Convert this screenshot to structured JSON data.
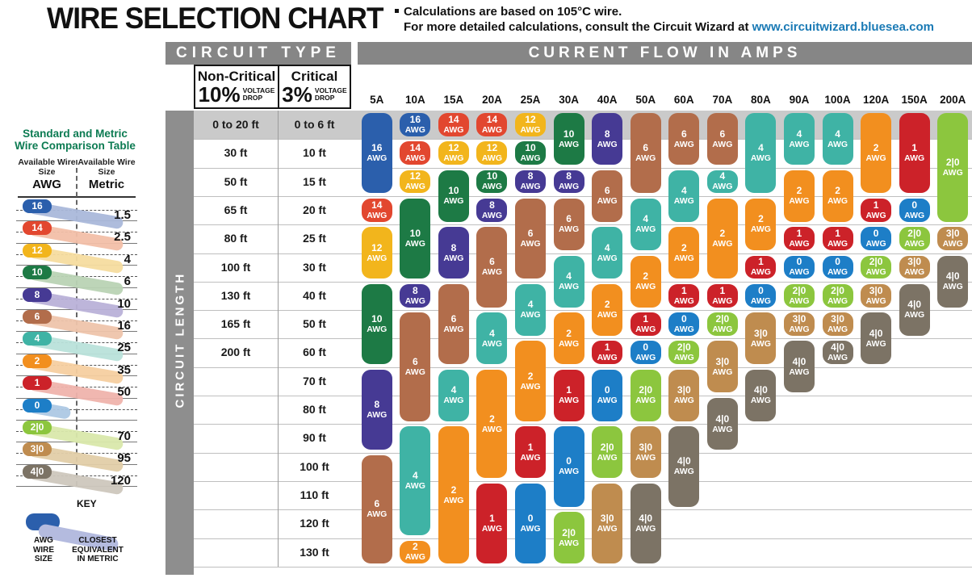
{
  "header": {
    "title": "WIRE SELECTION CHART",
    "note_line1": "Calculations are based on 105°C wire.",
    "note_line2": "For more detailed calculations, consult the Circuit Wizard at ",
    "link": "www.circuitwizard.bluesea.com"
  },
  "sidebar": {
    "title_line1": "Standard and Metric",
    "title_line2": "Wire Comparison Table",
    "col_awg_header": "Available Wire Size",
    "col_awg_sub": "AWG",
    "col_metric_header": "Available Wire Size",
    "col_metric_sub": "Metric",
    "rows": [
      {
        "awg": "16",
        "metric": "1.5"
      },
      {
        "awg": "14",
        "metric": "2.5"
      },
      {
        "awg": "12",
        "metric": "4"
      },
      {
        "awg": "10",
        "metric": "6"
      },
      {
        "awg": "8",
        "metric": "10"
      },
      {
        "awg": "6",
        "metric": "16"
      },
      {
        "awg": "4",
        "metric": "25"
      },
      {
        "awg": "2",
        "metric": "35"
      },
      {
        "awg": "1",
        "metric": "50"
      },
      {
        "awg": "0",
        "metric": ""
      },
      {
        "awg": "2|0",
        "metric": "70"
      },
      {
        "awg": "3|0",
        "metric": "95"
      },
      {
        "awg": "4|0",
        "metric": "120"
      }
    ],
    "key": {
      "label": "KEY",
      "awg_caption_lines": [
        "AWG",
        "WIRE",
        "SIZE"
      ],
      "metric_caption_lines": [
        "CLOSEST",
        "EQUIVALENT",
        "IN METRIC"
      ]
    }
  },
  "table_labels": {
    "circuit_type": "CIRCUIT TYPE",
    "current_flow": "CURRENT FLOW IN AMPS",
    "non_critical_title": "Non-Critical",
    "non_critical_pct": "10%",
    "critical_title": "Critical",
    "critical_pct": "3%",
    "voltage_drop_line1": "VOLTAGE",
    "voltage_drop_line2": "DROP",
    "circuit_length": "CIRCUIT LENGTH",
    "awg_suffix": "AWG"
  },
  "chart_data": {
    "type": "table",
    "title": "WIRE SELECTION CHART",
    "columns": [
      "5A",
      "10A",
      "15A",
      "20A",
      "25A",
      "30A",
      "40A",
      "50A",
      "60A",
      "70A",
      "80A",
      "90A",
      "100A",
      "120A",
      "150A",
      "200A"
    ],
    "rows_non_critical_10pct": [
      "0 to 20 ft",
      "30 ft",
      "50 ft",
      "65 ft",
      "80 ft",
      "100 ft",
      "130 ft",
      "165 ft",
      "200 ft",
      "",
      "",
      "",
      "",
      "",
      "",
      ""
    ],
    "rows_critical_3pct": [
      "0 to 6 ft",
      "10 ft",
      "15 ft",
      "20 ft",
      "25 ft",
      "30 ft",
      "40 ft",
      "50 ft",
      "60 ft",
      "70 ft",
      "80 ft",
      "90 ft",
      "100 ft",
      "110 ft",
      "120 ft",
      "130 ft"
    ],
    "wire_colors": {
      "16": "#2b5fac",
      "14": "#e2472f",
      "12": "#f2b51c",
      "10": "#1d7a45",
      "8": "#463a94",
      "6": "#b26d4b",
      "4": "#3fb3a5",
      "2": "#f28f1f",
      "1": "#cc2229",
      "0": "#1d7ec7",
      "2|0": "#8cc63e",
      "3|0": "#bf8c4f",
      "4|0": "#7c7365"
    },
    "wire_tints": {
      "16": "#aab8da",
      "14": "#f2bfa8",
      "12": "#f6dc9f",
      "10": "#b9d3b4",
      "8": "#b9b1d8",
      "6": "#eec4ab",
      "4": "#b9e2da",
      "2": "#f6cfa0",
      "1": "#efb3ac",
      "0": "#adc8e4",
      "2|0": "#d9e8ab",
      "3|0": "#e2cda8",
      "4|0": "#cdc7bd"
    },
    "pills": [
      {
        "a": "5A",
        "w": "16",
        "r": 1,
        "s": 3
      },
      {
        "a": "5A",
        "w": "14",
        "r": 4,
        "s": 1
      },
      {
        "a": "5A",
        "w": "12",
        "r": 5,
        "s": 2
      },
      {
        "a": "5A",
        "w": "10",
        "r": 7,
        "s": 3
      },
      {
        "a": "5A",
        "w": "8",
        "r": 10,
        "s": 3
      },
      {
        "a": "5A",
        "w": "6",
        "r": 13,
        "s": 4
      },
      {
        "a": "10A",
        "w": "16",
        "r": 1,
        "s": 1
      },
      {
        "a": "10A",
        "w": "14",
        "r": 2,
        "s": 1
      },
      {
        "a": "10A",
        "w": "12",
        "r": 3,
        "s": 1
      },
      {
        "a": "10A",
        "w": "10",
        "r": 4,
        "s": 3
      },
      {
        "a": "10A",
        "w": "8",
        "r": 7,
        "s": 1
      },
      {
        "a": "10A",
        "w": "6",
        "r": 8,
        "s": 4
      },
      {
        "a": "10A",
        "w": "4",
        "r": 12,
        "s": 4
      },
      {
        "a": "10A",
        "w": "2",
        "r": 16,
        "s": 1
      },
      {
        "a": "15A",
        "w": "14",
        "r": 1,
        "s": 1
      },
      {
        "a": "15A",
        "w": "12",
        "r": 2,
        "s": 1
      },
      {
        "a": "15A",
        "w": "10",
        "r": 3,
        "s": 2
      },
      {
        "a": "15A",
        "w": "8",
        "r": 5,
        "s": 2
      },
      {
        "a": "15A",
        "w": "6",
        "r": 7,
        "s": 3
      },
      {
        "a": "15A",
        "w": "4",
        "r": 10,
        "s": 2
      },
      {
        "a": "15A",
        "w": "2",
        "r": 12,
        "s": 5
      },
      {
        "a": "20A",
        "w": "14",
        "r": 1,
        "s": 1
      },
      {
        "a": "20A",
        "w": "12",
        "r": 2,
        "s": 1
      },
      {
        "a": "20A",
        "w": "10",
        "r": 3,
        "s": 1
      },
      {
        "a": "20A",
        "w": "8",
        "r": 4,
        "s": 1
      },
      {
        "a": "20A",
        "w": "6",
        "r": 5,
        "s": 3
      },
      {
        "a": "20A",
        "w": "4",
        "r": 8,
        "s": 2
      },
      {
        "a": "20A",
        "w": "2",
        "r": 10,
        "s": 4
      },
      {
        "a": "20A",
        "w": "1",
        "r": 14,
        "s": 3
      },
      {
        "a": "25A",
        "w": "12",
        "r": 1,
        "s": 1
      },
      {
        "a": "25A",
        "w": "10",
        "r": 2,
        "s": 1
      },
      {
        "a": "25A",
        "w": "8",
        "r": 3,
        "s": 1
      },
      {
        "a": "25A",
        "w": "6",
        "r": 4,
        "s": 3
      },
      {
        "a": "25A",
        "w": "4",
        "r": 7,
        "s": 2
      },
      {
        "a": "25A",
        "w": "2",
        "r": 9,
        "s": 3
      },
      {
        "a": "25A",
        "w": "1",
        "r": 12,
        "s": 2
      },
      {
        "a": "25A",
        "w": "0",
        "r": 14,
        "s": 3
      },
      {
        "a": "30A",
        "w": "10",
        "r": 1,
        "s": 2
      },
      {
        "a": "30A",
        "w": "8",
        "r": 3,
        "s": 1
      },
      {
        "a": "30A",
        "w": "6",
        "r": 4,
        "s": 2
      },
      {
        "a": "30A",
        "w": "4",
        "r": 6,
        "s": 2
      },
      {
        "a": "30A",
        "w": "2",
        "r": 8,
        "s": 2
      },
      {
        "a": "30A",
        "w": "1",
        "r": 10,
        "s": 2
      },
      {
        "a": "30A",
        "w": "0",
        "r": 12,
        "s": 3
      },
      {
        "a": "30A",
        "w": "2|0",
        "r": 15,
        "s": 2
      },
      {
        "a": "40A",
        "w": "8",
        "r": 1,
        "s": 2
      },
      {
        "a": "40A",
        "w": "6",
        "r": 3,
        "s": 2
      },
      {
        "a": "40A",
        "w": "4",
        "r": 5,
        "s": 2
      },
      {
        "a": "40A",
        "w": "2",
        "r": 7,
        "s": 2
      },
      {
        "a": "40A",
        "w": "1",
        "r": 9,
        "s": 1
      },
      {
        "a": "40A",
        "w": "0",
        "r": 10,
        "s": 2
      },
      {
        "a": "40A",
        "w": "2|0",
        "r": 12,
        "s": 2
      },
      {
        "a": "40A",
        "w": "3|0",
        "r": 14,
        "s": 3
      },
      {
        "a": "50A",
        "w": "6",
        "r": 1,
        "s": 3
      },
      {
        "a": "50A",
        "w": "4",
        "r": 4,
        "s": 2
      },
      {
        "a": "50A",
        "w": "2",
        "r": 6,
        "s": 2
      },
      {
        "a": "50A",
        "w": "1",
        "r": 8,
        "s": 1
      },
      {
        "a": "50A",
        "w": "0",
        "r": 9,
        "s": 1
      },
      {
        "a": "50A",
        "w": "2|0",
        "r": 10,
        "s": 2
      },
      {
        "a": "50A",
        "w": "3|0",
        "r": 12,
        "s": 2
      },
      {
        "a": "50A",
        "w": "4|0",
        "r": 14,
        "s": 3
      },
      {
        "a": "60A",
        "w": "6",
        "r": 1,
        "s": 2
      },
      {
        "a": "60A",
        "w": "4",
        "r": 3,
        "s": 2
      },
      {
        "a": "60A",
        "w": "2",
        "r": 5,
        "s": 2
      },
      {
        "a": "60A",
        "w": "1",
        "r": 7,
        "s": 1
      },
      {
        "a": "60A",
        "w": "0",
        "r": 8,
        "s": 1
      },
      {
        "a": "60A",
        "w": "2|0",
        "r": 9,
        "s": 1
      },
      {
        "a": "60A",
        "w": "3|0",
        "r": 10,
        "s": 2
      },
      {
        "a": "60A",
        "w": "4|0",
        "r": 12,
        "s": 3
      },
      {
        "a": "70A",
        "w": "6",
        "r": 1,
        "s": 2
      },
      {
        "a": "70A",
        "w": "4",
        "r": 3,
        "s": 1
      },
      {
        "a": "70A",
        "w": "2",
        "r": 4,
        "s": 3
      },
      {
        "a": "70A",
        "w": "1",
        "r": 7,
        "s": 1
      },
      {
        "a": "70A",
        "w": "2|0",
        "r": 8,
        "s": 1
      },
      {
        "a": "70A",
        "w": "3|0",
        "r": 9,
        "s": 2
      },
      {
        "a": "70A",
        "w": "4|0",
        "r": 11,
        "s": 2
      },
      {
        "a": "80A",
        "w": "4",
        "r": 1,
        "s": 3
      },
      {
        "a": "80A",
        "w": "2",
        "r": 4,
        "s": 2
      },
      {
        "a": "80A",
        "w": "1",
        "r": 6,
        "s": 1
      },
      {
        "a": "80A",
        "w": "0",
        "r": 7,
        "s": 1
      },
      {
        "a": "80A",
        "w": "3|0",
        "r": 8,
        "s": 2
      },
      {
        "a": "80A",
        "w": "4|0",
        "r": 10,
        "s": 2
      },
      {
        "a": "90A",
        "w": "4",
        "r": 1,
        "s": 2
      },
      {
        "a": "90A",
        "w": "2",
        "r": 3,
        "s": 2
      },
      {
        "a": "90A",
        "w": "1",
        "r": 5,
        "s": 1
      },
      {
        "a": "90A",
        "w": "0",
        "r": 6,
        "s": 1
      },
      {
        "a": "90A",
        "w": "2|0",
        "r": 7,
        "s": 1
      },
      {
        "a": "90A",
        "w": "3|0",
        "r": 8,
        "s": 1
      },
      {
        "a": "90A",
        "w": "4|0",
        "r": 9,
        "s": 2
      },
      {
        "a": "100A",
        "w": "4",
        "r": 1,
        "s": 2
      },
      {
        "a": "100A",
        "w": "2",
        "r": 3,
        "s": 2
      },
      {
        "a": "100A",
        "w": "1",
        "r": 5,
        "s": 1
      },
      {
        "a": "100A",
        "w": "0",
        "r": 6,
        "s": 1
      },
      {
        "a": "100A",
        "w": "2|0",
        "r": 7,
        "s": 1
      },
      {
        "a": "100A",
        "w": "3|0",
        "r": 8,
        "s": 1
      },
      {
        "a": "100A",
        "w": "4|0",
        "r": 9,
        "s": 1
      },
      {
        "a": "120A",
        "w": "2",
        "r": 1,
        "s": 3
      },
      {
        "a": "120A",
        "w": "1",
        "r": 4,
        "s": 1
      },
      {
        "a": "120A",
        "w": "0",
        "r": 5,
        "s": 1
      },
      {
        "a": "120A",
        "w": "2|0",
        "r": 6,
        "s": 1
      },
      {
        "a": "120A",
        "w": "3|0",
        "r": 7,
        "s": 1
      },
      {
        "a": "120A",
        "w": "4|0",
        "r": 8,
        "s": 2
      },
      {
        "a": "150A",
        "w": "1",
        "r": 1,
        "s": 3
      },
      {
        "a": "150A",
        "w": "0",
        "r": 4,
        "s": 1
      },
      {
        "a": "150A",
        "w": "2|0",
        "r": 5,
        "s": 1
      },
      {
        "a": "150A",
        "w": "3|0",
        "r": 6,
        "s": 1
      },
      {
        "a": "150A",
        "w": "4|0",
        "r": 7,
        "s": 2
      },
      {
        "a": "200A",
        "w": "2|0",
        "r": 1,
        "s": 4
      },
      {
        "a": "200A",
        "w": "3|0",
        "r": 5,
        "s": 1
      },
      {
        "a": "200A",
        "w": "4|0",
        "r": 6,
        "s": 2
      }
    ]
  }
}
